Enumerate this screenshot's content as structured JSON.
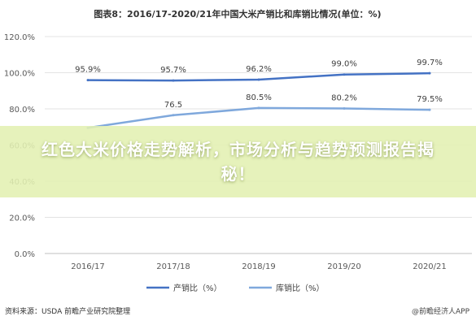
{
  "chart_data": {
    "type": "line",
    "title": "图表8：2016/17-2020/21年中国大米产销比和库销比情况(单位：%)",
    "categories": [
      "2016/17",
      "2017/18",
      "2018/19",
      "2019/20",
      "2020/21"
    ],
    "ylim": [
      0,
      120
    ],
    "yticks": [
      "0.0%",
      "20.0%",
      "40.0%",
      "60.0%",
      "80.0%",
      "100.0%",
      "120.0%"
    ],
    "grid": true,
    "legend_position": "bottom",
    "series": [
      {
        "name": "产销比（%）",
        "values": [
          95.9,
          95.7,
          96.2,
          99.0,
          99.7
        ],
        "labels": [
          "95.9%",
          "95.7%",
          "96.2%",
          "99.0%",
          "99.7%"
        ],
        "color": "#4472c4"
      },
      {
        "name": "库销比（%）",
        "values": [
          69.5,
          76.5,
          80.5,
          80.2,
          79.5
        ],
        "labels": [
          "",
          "76.5",
          "80.5%",
          "80.2%",
          "79.5%"
        ],
        "color": "#7fa8dc"
      }
    ]
  },
  "banner": {
    "text": "红色大米价格走势解析，市场分析与趋势预测报告揭秘！"
  },
  "source": {
    "text": "资料来源：USDA 前瞻产业研究院整理"
  },
  "corner": {
    "text": "@前瞻经济人APP"
  }
}
